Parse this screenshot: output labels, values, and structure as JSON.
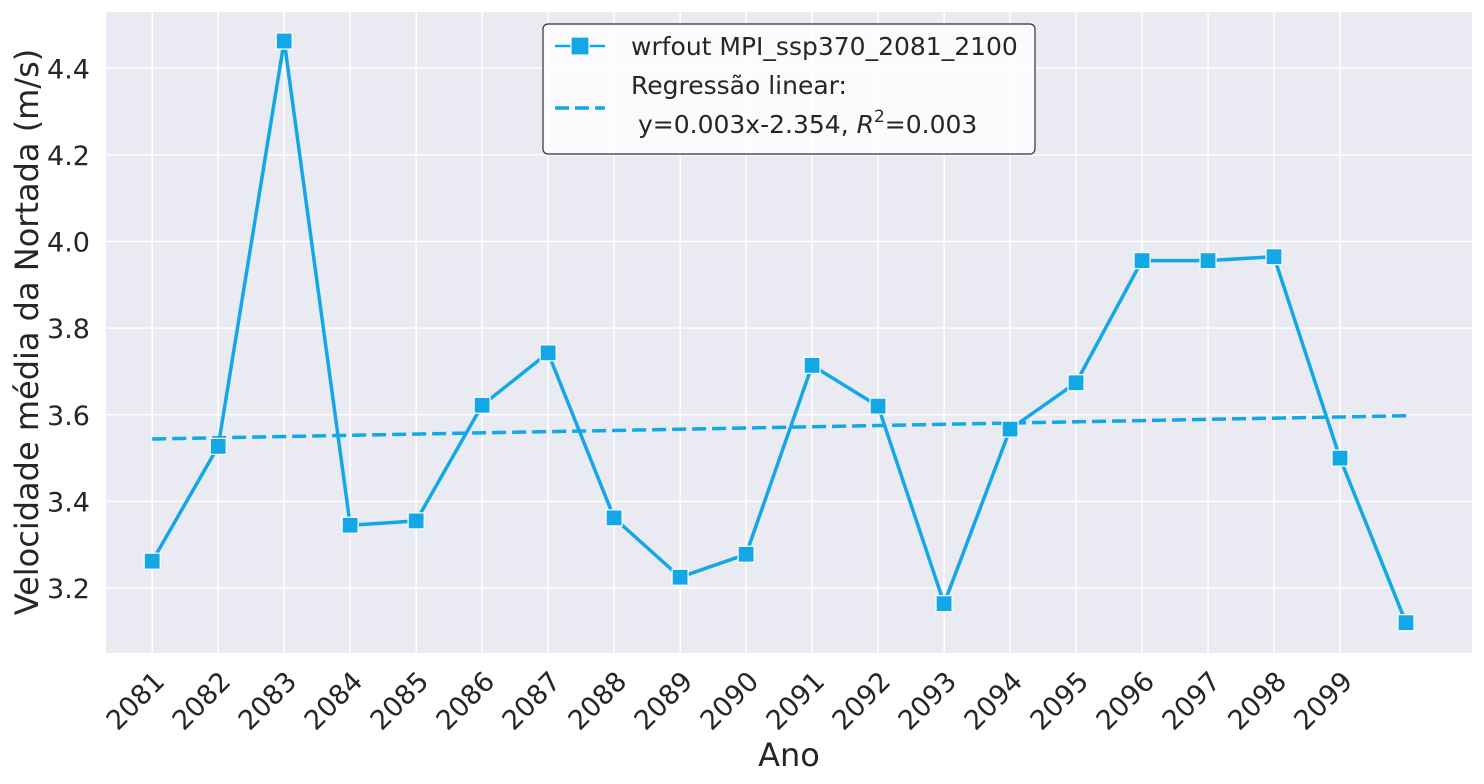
{
  "chart_data": {
    "type": "line",
    "xlabel": "Ano",
    "ylabel": "Velocidade média da Nortada (m/s)",
    "x_tick_labels": [
      "2081",
      "2082",
      "2083",
      "2084",
      "2085",
      "2086",
      "2087",
      "2088",
      "2089",
      "2090",
      "2091",
      "2092",
      "2093",
      "2094",
      "2095",
      "2096",
      "2097",
      "2098",
      "2099"
    ],
    "y_tick_labels": [
      "3.2",
      "3.4",
      "3.6",
      "3.8",
      "4.0",
      "4.2",
      "4.4"
    ],
    "y_ticks": [
      3.2,
      3.4,
      3.6,
      3.8,
      4.0,
      4.2,
      4.4
    ],
    "xlim": [
      2080.3,
      2101.0
    ],
    "ylim": [
      3.05,
      4.53
    ],
    "grid": true,
    "background": "#eaeaf2",
    "legend_placement": "upper-center",
    "series": [
      {
        "name": "wrfout MPI_ssp370_2081_2100",
        "color": "#12a8e6",
        "marker": "square",
        "x": [
          2081,
          2082,
          2083,
          2084,
          2085,
          2086,
          2087,
          2088,
          2089,
          2090,
          2091,
          2092,
          2093,
          2094,
          2095,
          2096,
          2097,
          2098,
          2099,
          2100
        ],
        "values": [
          3.262,
          3.527,
          4.463,
          3.345,
          3.355,
          3.622,
          3.743,
          3.362,
          3.225,
          3.278,
          3.714,
          3.62,
          3.164,
          3.567,
          3.674,
          3.956,
          3.956,
          3.965,
          3.5,
          3.12
        ]
      }
    ],
    "regression": {
      "label_line1": "Regressão linear:",
      "label_line2_pre": "y=0.003x-2.354, ",
      "label_r": "R",
      "label_sup": "2",
      "label_line2_post": "=0.003",
      "color": "#12a8e6",
      "style": "dashed",
      "x": [
        2081,
        2100
      ],
      "values": [
        3.544,
        3.598
      ]
    }
  }
}
